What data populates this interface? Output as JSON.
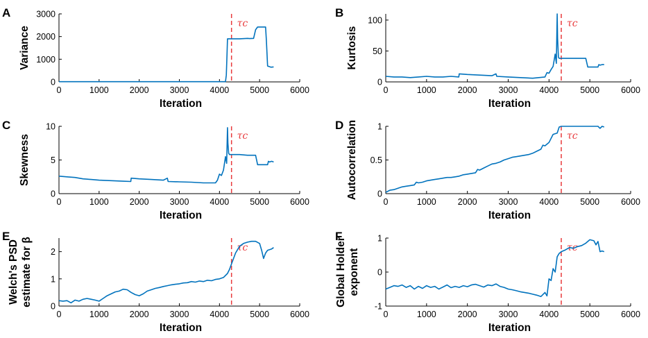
{
  "figure": {
    "colors": {
      "series": "#0072bd",
      "threshold": "#e8393b",
      "axis": "#000000"
    },
    "panels": [
      {
        "letter": "A",
        "chart_data": {
          "type": "line",
          "title": "",
          "xlabel": "Iteration",
          "ylabel": "Variance",
          "xlim": [
            0,
            6000
          ],
          "ylim": [
            0,
            3000
          ],
          "xticks": [
            0,
            1000,
            2000,
            3000,
            4000,
            5000,
            6000
          ],
          "yticks": [
            0,
            1000,
            2000,
            3000
          ],
          "threshold": {
            "x": 4300,
            "label": "τc"
          },
          "series": [
            {
              "name": "Variance",
              "x": [
                0,
                1000,
                2000,
                3000,
                4000,
                4150,
                4170,
                4190,
                4200,
                4300,
                4500,
                4700,
                4750,
                4850,
                4900,
                4950,
                5000,
                5150,
                5170,
                5200,
                5230,
                5280,
                5350
              ],
              "y": [
                8,
                8,
                8,
                8,
                10,
                12,
                300,
                1300,
                1900,
                1900,
                1900,
                1920,
                1910,
                1920,
                2300,
                2420,
                2420,
                2420,
                1800,
                700,
                680,
                650,
                660
              ]
            }
          ]
        }
      },
      {
        "letter": "B",
        "chart_data": {
          "type": "line",
          "title": "",
          "xlabel": "Iteration",
          "ylabel": "Kurtosis",
          "xlim": [
            0,
            6000
          ],
          "ylim": [
            0,
            110
          ],
          "xticks": [
            0,
            1000,
            2000,
            3000,
            4000,
            5000,
            6000
          ],
          "yticks": [
            0,
            50,
            100
          ],
          "threshold": {
            "x": 4300,
            "label": "τc"
          },
          "series": [
            {
              "name": "Kurtosis",
              "x": [
                0,
                200,
                400,
                600,
                800,
                1000,
                1200,
                1400,
                1600,
                1790,
                1800,
                2000,
                2300,
                2600,
                2700,
                2720,
                3000,
                3300,
                3600,
                3900,
                3950,
                4000,
                4050,
                4100,
                4150,
                4180,
                4200,
                4210,
                4230,
                4250,
                4300,
                4500,
                4700,
                4900,
                4950,
                5100,
                5200,
                5220,
                5250,
                5300,
                5350
              ],
              "y": [
                9,
                8,
                8,
                7,
                8,
                9,
                8,
                8,
                9,
                8,
                13,
                12,
                11,
                10,
                13,
                9,
                8,
                7,
                6,
                8,
                15,
                14,
                20,
                25,
                45,
                30,
                110,
                70,
                40,
                38,
                38,
                38,
                38,
                38,
                24,
                24,
                24,
                28,
                27,
                28,
                28
              ]
            }
          ]
        }
      },
      {
        "letter": "C",
        "chart_data": {
          "type": "line",
          "title": "",
          "xlabel": "Iteration",
          "ylabel": "Skewness",
          "xlim": [
            0,
            6000
          ],
          "ylim": [
            0,
            10
          ],
          "xticks": [
            0,
            1000,
            2000,
            3000,
            4000,
            5000,
            6000
          ],
          "yticks": [
            0,
            5,
            10
          ],
          "threshold": {
            "x": 4300,
            "label": "τc"
          },
          "series": [
            {
              "name": "Skewness",
              "x": [
                0,
                200,
                400,
                600,
                800,
                1000,
                1200,
                1400,
                1600,
                1790,
                1800,
                2000,
                2300,
                2600,
                2700,
                2720,
                3000,
                3300,
                3600,
                3900,
                3950,
                4000,
                4050,
                4100,
                4150,
                4180,
                4200,
                4210,
                4230,
                4250,
                4300,
                4500,
                4700,
                4900,
                4950,
                5100,
                5200,
                5220,
                5250,
                5300,
                5350
              ],
              "y": [
                2.6,
                2.5,
                2.4,
                2.2,
                2.1,
                2.0,
                1.95,
                1.9,
                1.85,
                1.8,
                2.3,
                2.2,
                2.1,
                2.0,
                2.3,
                1.8,
                1.75,
                1.7,
                1.6,
                1.6,
                2.0,
                2.9,
                2.7,
                3.5,
                5.5,
                4.5,
                9.8,
                7.5,
                6.0,
                5.8,
                5.8,
                5.8,
                5.7,
                5.7,
                4.3,
                4.3,
                4.3,
                4.8,
                4.7,
                4.8,
                4.7
              ]
            }
          ]
        }
      },
      {
        "letter": "D",
        "chart_data": {
          "type": "line",
          "title": "",
          "xlabel": "Iteration",
          "ylabel": "Autocorrelation",
          "xlim": [
            0,
            6000
          ],
          "ylim": [
            0,
            1
          ],
          "xticks": [
            0,
            1000,
            2000,
            3000,
            4000,
            5000,
            6000
          ],
          "yticks": [
            0,
            0.5,
            1
          ],
          "threshold": {
            "x": 4300,
            "label": "τc"
          },
          "series": [
            {
              "name": "Autocorrelation",
              "x": [
                0,
                100,
                200,
                300,
                400,
                500,
                600,
                700,
                750,
                800,
                900,
                1000,
                1100,
                1200,
                1300,
                1400,
                1500,
                1600,
                1700,
                1800,
                1900,
                2000,
                2100,
                2200,
                2250,
                2300,
                2400,
                2500,
                2600,
                2700,
                2800,
                2900,
                3000,
                3100,
                3200,
                3300,
                3400,
                3500,
                3600,
                3700,
                3800,
                3850,
                3900,
                4000,
                4100,
                4200,
                4250,
                4300,
                4500,
                4700,
                4900,
                5100,
                5200,
                5250,
                5300,
                5350
              ],
              "y": [
                0.02,
                0.05,
                0.06,
                0.08,
                0.1,
                0.11,
                0.12,
                0.13,
                0.17,
                0.16,
                0.17,
                0.19,
                0.2,
                0.21,
                0.22,
                0.23,
                0.24,
                0.24,
                0.25,
                0.26,
                0.28,
                0.29,
                0.3,
                0.31,
                0.36,
                0.35,
                0.38,
                0.41,
                0.44,
                0.45,
                0.47,
                0.5,
                0.52,
                0.54,
                0.55,
                0.56,
                0.57,
                0.58,
                0.6,
                0.63,
                0.66,
                0.72,
                0.71,
                0.76,
                0.88,
                0.9,
                0.99,
                1.0,
                1.0,
                1.0,
                1.0,
                1.0,
                1.0,
                0.97,
                1.0,
                0.99
              ]
            }
          ]
        }
      },
      {
        "letter": "E",
        "chart_data": {
          "type": "line",
          "title": "",
          "xlabel": "Iteration",
          "ylabel": "Welch's PSD estimate for β",
          "xlim": [
            0,
            6000
          ],
          "ylim": [
            0,
            2.5
          ],
          "xticks": [
            0,
            1000,
            2000,
            3000,
            4000,
            5000,
            6000
          ],
          "yticks": [
            0,
            1,
            2
          ],
          "threshold": {
            "x": 4300,
            "label": "τc"
          },
          "series": [
            {
              "name": "Welch's PSD estimate for β",
              "x": [
                0,
                100,
                200,
                300,
                400,
                500,
                600,
                700,
                800,
                900,
                1000,
                1100,
                1200,
                1300,
                1400,
                1500,
                1600,
                1700,
                1800,
                1900,
                2000,
                2100,
                2200,
                2300,
                2400,
                2500,
                2600,
                2700,
                2800,
                2900,
                3000,
                3100,
                3200,
                3300,
                3400,
                3500,
                3600,
                3700,
                3800,
                3900,
                4000,
                4100,
                4200,
                4250,
                4300,
                4400,
                4500,
                4600,
                4700,
                4800,
                4900,
                5000,
                5050,
                5100,
                5150,
                5200,
                5300,
                5350
              ],
              "y": [
                0.2,
                0.18,
                0.2,
                0.12,
                0.22,
                0.18,
                0.25,
                0.28,
                0.25,
                0.22,
                0.18,
                0.28,
                0.38,
                0.45,
                0.52,
                0.55,
                0.62,
                0.6,
                0.5,
                0.42,
                0.38,
                0.45,
                0.55,
                0.6,
                0.65,
                0.68,
                0.72,
                0.75,
                0.78,
                0.8,
                0.82,
                0.85,
                0.86,
                0.9,
                0.88,
                0.92,
                0.9,
                0.95,
                0.93,
                0.98,
                1.0,
                1.05,
                1.2,
                1.35,
                1.55,
                1.95,
                2.2,
                2.3,
                2.35,
                2.38,
                2.38,
                2.3,
                2.05,
                1.75,
                1.95,
                2.05,
                2.1,
                2.15
              ]
            }
          ]
        }
      },
      {
        "letter": "F",
        "chart_data": {
          "type": "line",
          "title": "",
          "xlabel": "Iteration",
          "ylabel": "Global Holder exponent",
          "xlim": [
            0,
            6000
          ],
          "ylim": [
            -1,
            1
          ],
          "xticks": [
            0,
            1000,
            2000,
            3000,
            4000,
            5000,
            6000
          ],
          "yticks": [
            -1,
            0,
            1
          ],
          "threshold": {
            "x": 4300,
            "label": "τc"
          },
          "series": [
            {
              "name": "Global Holder exponent",
              "x": [
                0,
                100,
                200,
                300,
                400,
                500,
                600,
                700,
                800,
                900,
                1000,
                1100,
                1200,
                1300,
                1400,
                1500,
                1600,
                1700,
                1800,
                1900,
                2000,
                2100,
                2200,
                2300,
                2400,
                2500,
                2600,
                2700,
                2800,
                2900,
                3000,
                3100,
                3200,
                3300,
                3400,
                3500,
                3600,
                3700,
                3800,
                3900,
                3950,
                4000,
                4050,
                4100,
                4150,
                4200,
                4250,
                4300,
                4400,
                4500,
                4600,
                4700,
                4800,
                4900,
                5000,
                5100,
                5150,
                5200,
                5250,
                5300,
                5350
              ],
              "y": [
                -0.5,
                -0.45,
                -0.4,
                -0.42,
                -0.38,
                -0.45,
                -0.4,
                -0.5,
                -0.42,
                -0.48,
                -0.4,
                -0.45,
                -0.42,
                -0.5,
                -0.44,
                -0.38,
                -0.46,
                -0.42,
                -0.45,
                -0.4,
                -0.43,
                -0.38,
                -0.36,
                -0.4,
                -0.44,
                -0.38,
                -0.4,
                -0.35,
                -0.42,
                -0.45,
                -0.5,
                -0.52,
                -0.55,
                -0.58,
                -0.6,
                -0.62,
                -0.65,
                -0.68,
                -0.72,
                -0.6,
                -0.7,
                -0.2,
                -0.25,
                0.1,
                0.0,
                0.45,
                0.55,
                0.6,
                0.65,
                0.72,
                0.7,
                0.75,
                0.78,
                0.85,
                0.95,
                0.92,
                0.8,
                0.9,
                0.6,
                0.62,
                0.6
              ]
            }
          ]
        }
      }
    ]
  }
}
